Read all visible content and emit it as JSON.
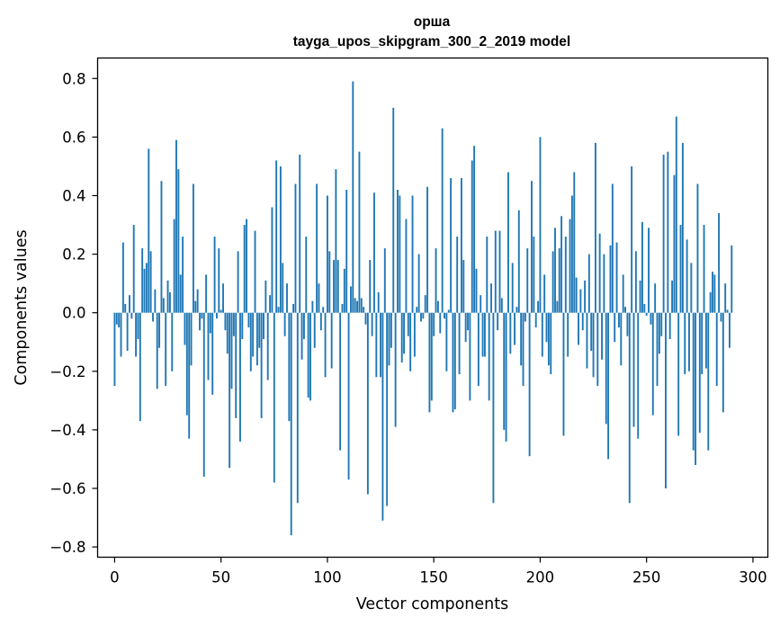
{
  "chart_data": {
    "type": "bar",
    "title": "орша",
    "subtitle": "tayga_upos_skipgram_300_2_2019 model",
    "xlabel": "Vector components",
    "ylabel": "Components values",
    "xlim": [
      -8,
      307
    ],
    "ylim": [
      -0.835,
      0.87
    ],
    "xticks": [
      0,
      50,
      100,
      150,
      200,
      250,
      300
    ],
    "yticks": [
      -0.8,
      -0.6,
      -0.4,
      -0.2,
      0.0,
      0.2,
      0.4,
      0.6,
      0.8
    ],
    "ytick_labels": [
      "−0.8",
      "−0.6",
      "−0.4",
      "−0.2",
      "0.0",
      "0.2",
      "0.4",
      "0.6",
      "0.8"
    ],
    "xtick_labels": [
      "0",
      "50",
      "100",
      "150",
      "200",
      "250",
      "300"
    ],
    "bar_color": "#1f77b4",
    "grid": false,
    "values": [
      -0.25,
      -0.04,
      -0.05,
      -0.15,
      0.24,
      0.03,
      -0.13,
      0.06,
      -0.02,
      0.3,
      -0.15,
      -0.09,
      -0.37,
      0.22,
      0.15,
      0.17,
      0.56,
      0.21,
      -0.03,
      0.08,
      -0.26,
      -0.12,
      0.45,
      0.05,
      -0.25,
      0.11,
      0.07,
      -0.2,
      0.32,
      0.59,
      0.49,
      0.13,
      0.26,
      -0.11,
      -0.35,
      -0.43,
      -0.18,
      0.44,
      0.04,
      0.08,
      -0.06,
      -0.02,
      -0.56,
      0.13,
      -0.23,
      -0.07,
      -0.28,
      0.26,
      -0.02,
      0.22,
      0.01,
      0.1,
      -0.06,
      -0.14,
      -0.53,
      -0.26,
      -0.08,
      -0.36,
      0.21,
      -0.44,
      -0.09,
      0.3,
      0.32,
      -0.05,
      -0.2,
      -0.15,
      0.28,
      -0.18,
      -0.12,
      -0.36,
      -0.09,
      0.11,
      -0.23,
      0.06,
      0.36,
      -0.58,
      0.52,
      0.02,
      0.5,
      0.17,
      -0.08,
      0.1,
      -0.37,
      -0.76,
      0.03,
      0.44,
      -0.65,
      0.54,
      -0.16,
      -0.09,
      0.26,
      -0.29,
      -0.3,
      0.04,
      -0.12,
      0.44,
      0.1,
      -0.06,
      0.02,
      -0.22,
      0.4,
      0.21,
      -0.19,
      0.18,
      0.49,
      0.18,
      -0.47,
      0.03,
      0.15,
      0.42,
      -0.57,
      0.09,
      0.79,
      0.05,
      0.04,
      0.55,
      0.05,
      0.02,
      -0.04,
      -0.62,
      0.18,
      -0.08,
      0.41,
      -0.22,
      0.07,
      -0.22,
      -0.71,
      0.22,
      -0.66,
      -0.18,
      -0.12,
      0.7,
      -0.39,
      0.42,
      0.4,
      -0.17,
      -0.14,
      0.32,
      -0.08,
      -0.2,
      0.4,
      -0.15,
      0.02,
      0.2,
      -0.03,
      -0.02,
      0.06,
      0.43,
      -0.34,
      -0.3,
      -0.08,
      0.22,
      0.04,
      -0.07,
      0.63,
      -0.02,
      -0.2,
      0.01,
      0.46,
      -0.34,
      -0.33,
      0.26,
      -0.21,
      0.46,
      0.18,
      -0.1,
      -0.06,
      -0.3,
      0.52,
      0.57,
      0.15,
      -0.25,
      0.06,
      -0.15,
      -0.15,
      0.26,
      -0.3,
      0.1,
      -0.65,
      0.28,
      -0.06,
      0.28,
      0.05,
      -0.4,
      -0.44,
      0.48,
      -0.14,
      0.17,
      -0.11,
      0.02,
      0.35,
      -0.18,
      -0.25,
      -0.03,
      0.22,
      -0.49,
      0.45,
      0.26,
      -0.05,
      0.04,
      0.6,
      -0.15,
      0.13,
      -0.1,
      -0.18,
      -0.21,
      0.21,
      0.29,
      0.04,
      0.22,
      0.33,
      -0.42,
      0.26,
      -0.15,
      0.32,
      0.4,
      0.48,
      0.12,
      -0.11,
      0.08,
      -0.06,
      0.11,
      -0.19,
      0.2,
      -0.13,
      -0.22,
      0.58,
      -0.25,
      0.27,
      -0.16,
      0.2,
      -0.38,
      -0.5,
      0.23,
      0.44,
      -0.1,
      0.24,
      -0.05,
      -0.18,
      0.13,
      0.02,
      -0.08,
      -0.65,
      0.5,
      -0.39,
      0.21,
      -0.43,
      0.11,
      0.31,
      0.03,
      -0.01,
      0.29,
      -0.04,
      -0.35,
      0.1,
      -0.25,
      -0.14,
      -0.08,
      0.54,
      -0.6,
      0.55,
      -0.09,
      0.11,
      0.47,
      0.67,
      -0.42,
      0.3,
      0.58,
      -0.21,
      0.25,
      -0.2,
      0.17,
      -0.47,
      -0.52,
      0.44,
      -0.41,
      -0.21,
      0.3,
      -0.19,
      -0.47,
      0.07,
      0.14,
      0.13,
      -0.25,
      0.34,
      -0.03,
      -0.34,
      0.1,
      0.01,
      -0.12,
      0.23
    ]
  }
}
